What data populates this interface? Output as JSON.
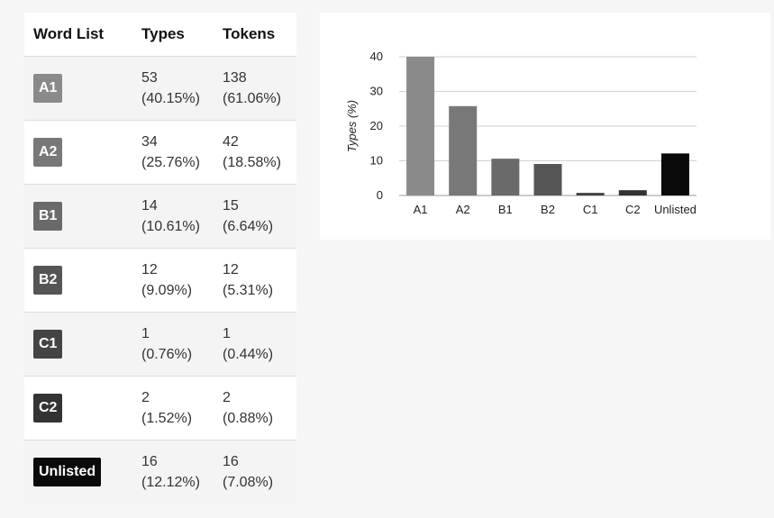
{
  "table": {
    "headers": {
      "word_list": "Word List",
      "types": "Types",
      "tokens": "Tokens"
    },
    "rows": [
      {
        "level": "A1",
        "badge_color": "#8a8a8a",
        "types_count": "53",
        "types_pct": "(40.15%)",
        "tokens_count": "138",
        "tokens_pct": "(61.06%)"
      },
      {
        "level": "A2",
        "badge_color": "#787878",
        "types_count": "34",
        "types_pct": "(25.76%)",
        "tokens_count": "42",
        "tokens_pct": "(18.58%)"
      },
      {
        "level": "B1",
        "badge_color": "#6a6a6a",
        "types_count": "14",
        "types_pct": "(10.61%)",
        "tokens_count": "15",
        "tokens_pct": "(6.64%)"
      },
      {
        "level": "B2",
        "badge_color": "#555555",
        "types_count": "12",
        "types_pct": "(9.09%)",
        "tokens_count": "12",
        "tokens_pct": "(5.31%)"
      },
      {
        "level": "C1",
        "badge_color": "#444444",
        "types_count": "1",
        "types_pct": "(0.76%)",
        "tokens_count": "1",
        "tokens_pct": "(0.44%)"
      },
      {
        "level": "C2",
        "badge_color": "#333333",
        "types_count": "2",
        "types_pct": "(1.52%)",
        "tokens_count": "2",
        "tokens_pct": "(0.88%)"
      },
      {
        "level": "Unlisted",
        "badge_color": "#0a0a0a",
        "types_count": "16",
        "types_pct": "(12.12%)",
        "tokens_count": "16",
        "tokens_pct": "(7.08%)"
      }
    ]
  },
  "chart_data": {
    "type": "bar",
    "title": "",
    "xlabel": "",
    "ylabel": "Types (%)",
    "categories": [
      "A1",
      "A2",
      "B1",
      "B2",
      "C1",
      "C2",
      "Unlisted"
    ],
    "values": [
      40.15,
      25.76,
      10.61,
      9.09,
      0.76,
      1.52,
      12.12
    ],
    "colors": [
      "#8a8a8a",
      "#787878",
      "#6a6a6a",
      "#555555",
      "#444444",
      "#333333",
      "#0a0a0a"
    ],
    "ylim": [
      0,
      40
    ],
    "yticks": [
      "0",
      "10",
      "20",
      "30",
      "40"
    ],
    "grid": true,
    "legend": "none"
  }
}
